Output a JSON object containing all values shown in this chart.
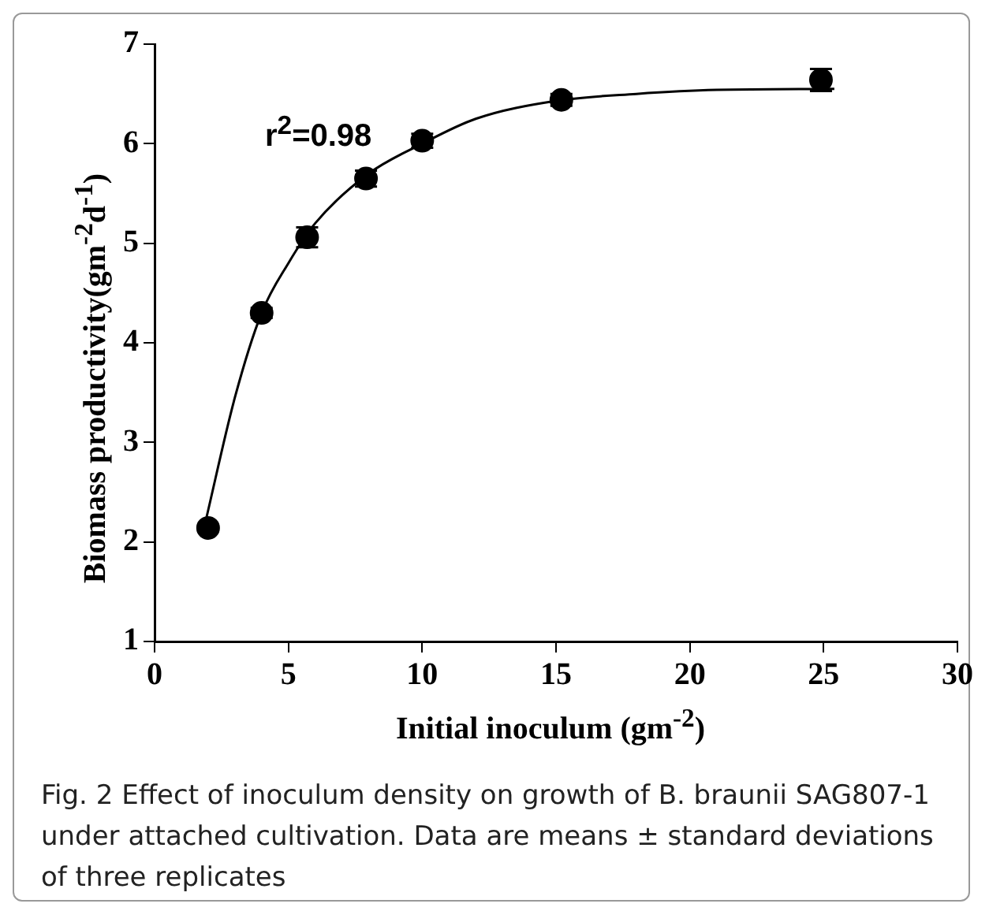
{
  "chart_data": {
    "type": "scatter",
    "xlabel": "Initial inoculum (gm$^{-2}$)",
    "ylabel": "Biomass productivity(gm$^{-2}$d$^{-1}$)",
    "xlim": [
      0,
      30
    ],
    "xticks": [
      0,
      5,
      10,
      15,
      20,
      25,
      30
    ],
    "ylim": [
      1,
      7
    ],
    "yticks": [
      1,
      2,
      3,
      4,
      5,
      6,
      7
    ],
    "grid": false,
    "legend": false,
    "marker": "circle",
    "series": [
      {
        "color": "#000000",
        "x": [
          2,
          4,
          5.7,
          7.9,
          10,
          15.2,
          24.9
        ],
        "values": [
          2.14,
          4.3,
          5.06,
          5.65,
          6.03,
          6.44,
          6.64
        ],
        "errors": [
          0.03,
          0.05,
          0.1,
          0.08,
          0.07,
          0.06,
          0.11
        ]
      },
      {
        "type": "line",
        "color": "#000000",
        "marker": "none",
        "line_style": "solid",
        "x": [
          1.9,
          3,
          4,
          5,
          6,
          8,
          10,
          12,
          15,
          18,
          21,
          25.4
        ],
        "values": [
          2.2,
          3.45,
          4.3,
          4.8,
          5.2,
          5.7,
          6.0,
          6.25,
          6.43,
          6.5,
          6.54,
          6.55
        ]
      }
    ],
    "annotations": [
      "r$^{2}$=0.98",
      "Fig. 2  Effect of inoculum density on growth of B. braunii SAG807-1 under attached cultivation. Data are means ± standard deviations of three replicates"
    ]
  }
}
